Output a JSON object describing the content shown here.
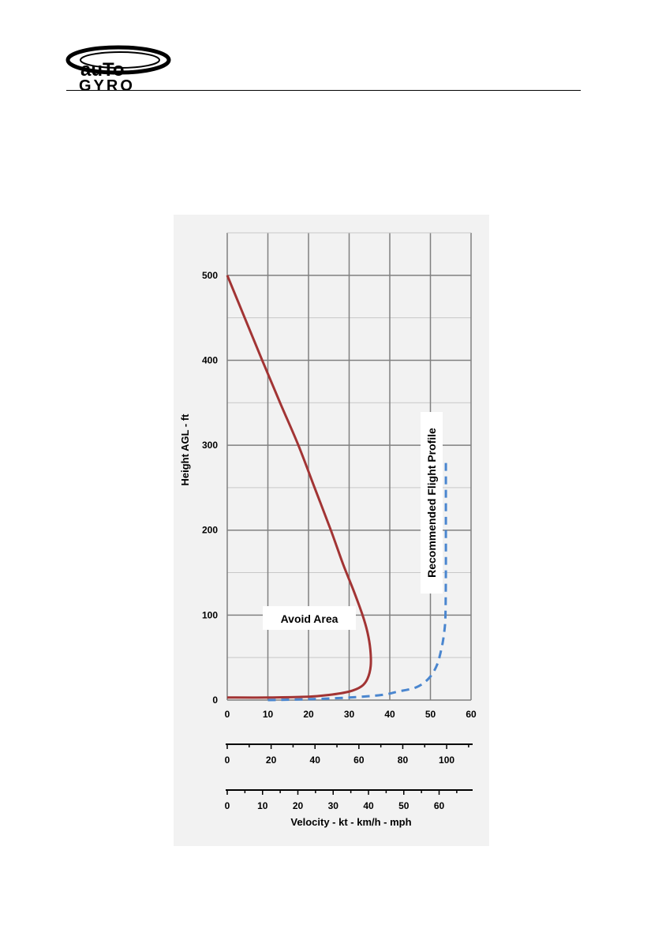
{
  "header": {
    "logo_text_top": "auTo",
    "logo_text_bottom": "GYRO"
  },
  "colors": {
    "avoid_curve": "#a23434",
    "profile_curve": "#4a86cf",
    "grid_major": "#808080",
    "grid_minor": "#c8c8c8",
    "panel_bg": "#f2f2f2"
  },
  "chart_data": {
    "type": "line",
    "title": "",
    "xlabel": "Velocity - kt - km/h - mph",
    "ylabel": "Height AGL - ft",
    "xlim": [
      0,
      60
    ],
    "ylim": [
      0,
      550
    ],
    "x_ticks": [
      "0",
      "10",
      "20",
      "30",
      "40",
      "50",
      "60"
    ],
    "y_ticks": [
      "0",
      "100",
      "200",
      "300",
      "400",
      "500"
    ],
    "grid": true,
    "secondary_axes": [
      {
        "unit": "km/h",
        "ticks": [
          "0",
          "20",
          "40",
          "60",
          "80",
          "100"
        ],
        "values": [
          0,
          20,
          40,
          60,
          80,
          100
        ]
      },
      {
        "unit": "mph",
        "ticks": [
          "0",
          "10",
          "20",
          "30",
          "40",
          "50",
          "60"
        ],
        "values": [
          0,
          10,
          20,
          30,
          40,
          50,
          60
        ]
      }
    ],
    "series": [
      {
        "label": "Avoid Area",
        "style": "solid",
        "points": [
          [
            0,
            500
          ],
          [
            4.3,
            450
          ],
          [
            8.6,
            400
          ],
          [
            13,
            350
          ],
          [
            17.5,
            300
          ],
          [
            21.5,
            250
          ],
          [
            25.5,
            200
          ],
          [
            28.5,
            160
          ],
          [
            31,
            130
          ],
          [
            33.3,
            100
          ],
          [
            34.5,
            80
          ],
          [
            35.2,
            60
          ],
          [
            35.3,
            40
          ],
          [
            34.5,
            25
          ],
          [
            33,
            16
          ],
          [
            30,
            10
          ],
          [
            25,
            6
          ],
          [
            20,
            4
          ],
          [
            10,
            3
          ],
          [
            0,
            3
          ]
        ]
      },
      {
        "label": "Recommended Flight Profile",
        "style": "dashed",
        "points": [
          [
            10,
            0
          ],
          [
            20,
            1
          ],
          [
            30,
            3
          ],
          [
            38,
            6
          ],
          [
            42,
            10
          ],
          [
            46.5,
            15
          ],
          [
            49.5,
            25
          ],
          [
            51.5,
            40
          ],
          [
            52.7,
            60
          ],
          [
            53.4,
            80
          ],
          [
            53.7,
            100
          ],
          [
            53.8,
            150
          ],
          [
            53.8,
            200
          ],
          [
            53.8,
            280
          ]
        ]
      }
    ]
  }
}
